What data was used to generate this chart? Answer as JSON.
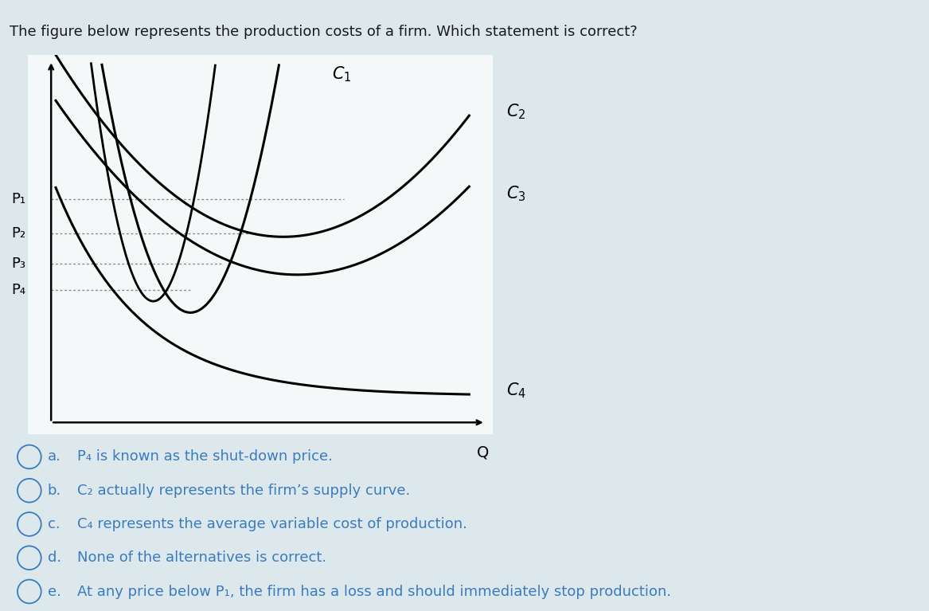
{
  "title": "The figure below represents the production costs of a firm. Which statement is correct?",
  "background_color": "#dde8ec",
  "plot_bg_color": "#f5f8f8",
  "curve_color": "#000000",
  "dotted_color": "#888888",
  "p_labels": [
    "P₁",
    "P₂",
    "P₃",
    "P₄"
  ],
  "c_labels": [
    "C₁",
    "C₂",
    "C₃",
    "C₄"
  ],
  "options": [
    [
      "a.",
      "P₄ is known as the shut-down price."
    ],
    [
      "b.",
      "C₂ actually represents the firm’s supply curve."
    ],
    [
      "c.",
      "C₄ represents the average variable cost of production."
    ],
    [
      "d.",
      "None of the alternatives is correct."
    ],
    [
      "e.",
      "At any price below P₁, the firm has a loss and should immediately stop production."
    ]
  ],
  "option_color": "#3a7bbf",
  "option_text_color": "#3a7bbf"
}
